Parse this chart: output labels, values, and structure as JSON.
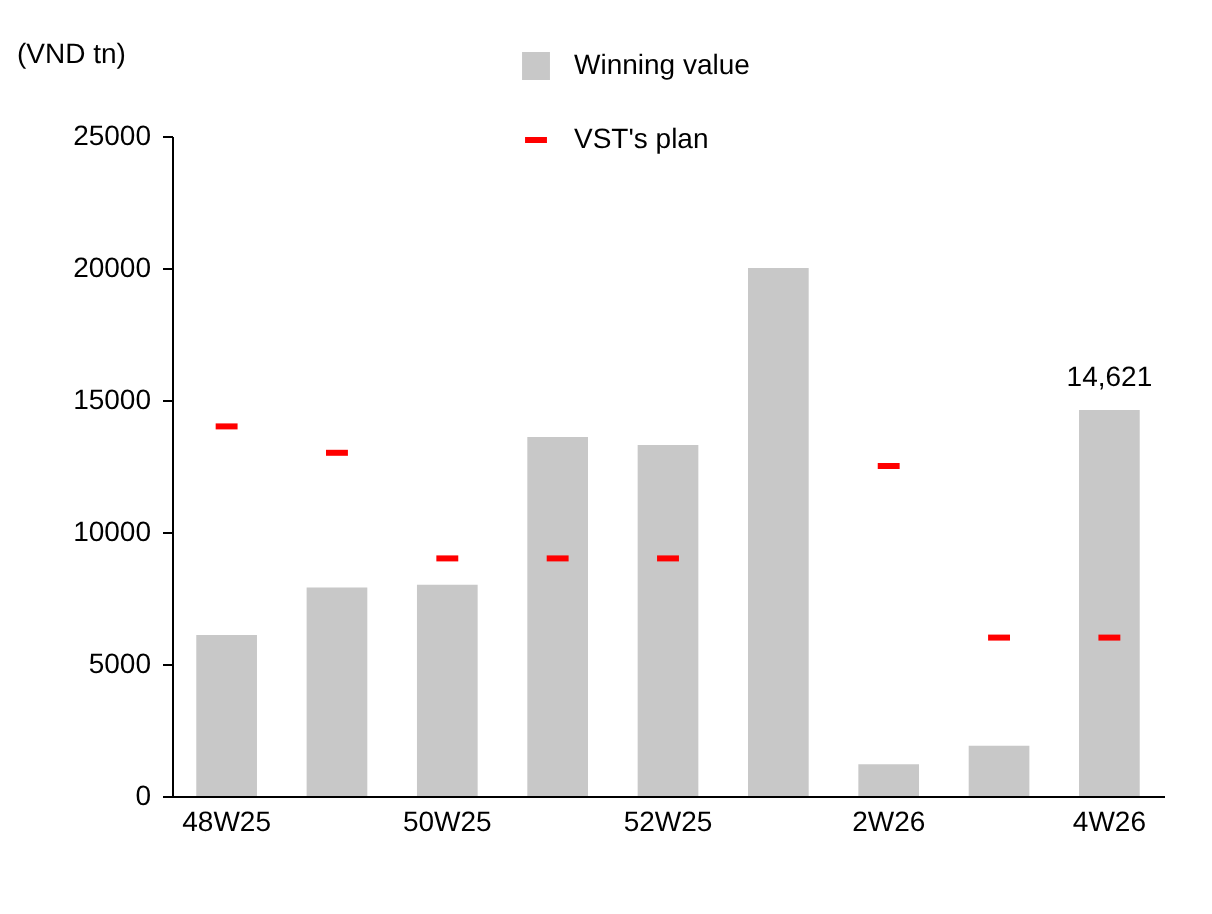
{
  "chart_data": {
    "type": "bar",
    "ylabel": "(VND tn)",
    "categories": [
      "48W25",
      null,
      "50W25",
      null,
      "52W25",
      null,
      "2W26",
      null,
      "4W26"
    ],
    "series": [
      {
        "name": "Winning value",
        "color": "#c8c8c8",
        "values": [
          6100,
          7900,
          8000,
          13600,
          13300,
          20000,
          1200,
          1900,
          14621
        ],
        "value_labels": [
          null,
          null,
          null,
          null,
          null,
          null,
          null,
          null,
          "14,621"
        ]
      },
      {
        "name": "VST's plan",
        "type": "scatter",
        "color": "#ff0000",
        "values": [
          14000,
          13000,
          9000,
          9000,
          9000,
          null,
          12500,
          6000,
          6000
        ]
      }
    ],
    "ylim": [
      0,
      25000
    ],
    "yticks": [
      0,
      5000,
      10000,
      15000,
      20000,
      25000
    ],
    "legend": "top",
    "grid": false
  }
}
